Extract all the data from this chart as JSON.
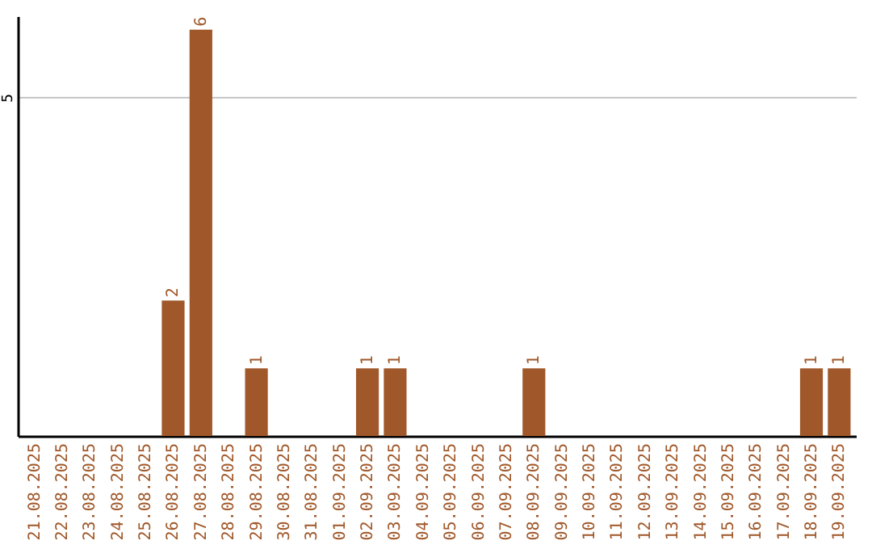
{
  "chart_data": {
    "type": "bar",
    "categories": [
      "21.08.2025",
      "22.08.2025",
      "23.08.2025",
      "24.08.2025",
      "25.08.2025",
      "26.08.2025",
      "27.08.2025",
      "28.08.2025",
      "29.08.2025",
      "30.08.2025",
      "31.08.2025",
      "01.09.2025",
      "02.09.2025",
      "03.09.2025",
      "04.09.2025",
      "05.09.2025",
      "06.09.2025",
      "07.09.2025",
      "08.09.2025",
      "09.09.2025",
      "10.09.2025",
      "11.09.2025",
      "12.09.2025",
      "13.09.2025",
      "14.09.2025",
      "15.09.2025",
      "16.09.2025",
      "17.09.2025",
      "18.09.2025",
      "19.09.2025"
    ],
    "values": [
      0,
      0,
      0,
      0,
      0,
      2,
      6,
      0,
      1,
      0,
      0,
      0,
      1,
      1,
      0,
      0,
      0,
      0,
      1,
      0,
      0,
      0,
      0,
      0,
      0,
      0,
      0,
      0,
      1,
      1
    ],
    "color": "#a0582a",
    "ylim": [
      0,
      6.2
    ],
    "yticks": [
      5
    ],
    "grid": "y",
    "value_labels": [
      null,
      null,
      null,
      null,
      null,
      "2",
      "6",
      null,
      "1",
      null,
      null,
      null,
      "1",
      "1",
      null,
      null,
      null,
      null,
      "1",
      null,
      null,
      null,
      null,
      null,
      null,
      null,
      null,
      null,
      "1",
      "1"
    ]
  }
}
